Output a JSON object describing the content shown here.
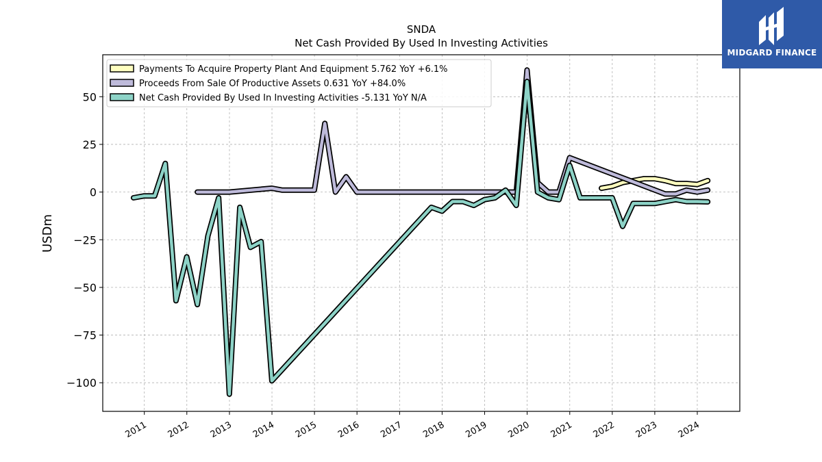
{
  "chart_data": {
    "type": "line",
    "ticker": "SNDA",
    "title": "Net Cash Provided By Used In Investing Activities",
    "ylabel": "USDm",
    "xlabel": "",
    "ylim": [
      -115,
      72
    ],
    "yticks": [
      50,
      25,
      0,
      -25,
      -50,
      -75,
      -100
    ],
    "ytick_labels": [
      "50",
      "25",
      "0",
      "−25",
      "−50",
      "−75",
      "−100"
    ],
    "xlim": [
      "2010-01-09",
      "2024-12-31"
    ],
    "xticks": [
      "2011",
      "2012",
      "2013",
      "2014",
      "2015",
      "2016",
      "2017",
      "2018",
      "2019",
      "2020",
      "2021",
      "2022",
      "2023",
      "2024"
    ],
    "grid": true,
    "legend_position": "top-left",
    "series": [
      {
        "name": "Payments To Acquire Property Plant And Equipment  5.762 YoY +6.1%",
        "color": "#ffffbf",
        "points": [
          [
            "2021-09-30",
            2
          ],
          [
            "2021-12-31",
            3
          ],
          [
            "2022-03-31",
            5
          ],
          [
            "2022-06-30",
            6
          ],
          [
            "2022-09-30",
            7
          ],
          [
            "2022-12-31",
            7
          ],
          [
            "2023-03-31",
            6
          ],
          [
            "2023-06-30",
            4.5
          ],
          [
            "2023-09-30",
            4.5
          ],
          [
            "2023-12-31",
            4
          ],
          [
            "2024-03-31",
            6
          ]
        ]
      },
      {
        "name": "Proceeds From Sale Of Productive Assets  0.631 YoY +84.0%",
        "color": "#bebada",
        "points": [
          [
            "2012-03-31",
            0
          ],
          [
            "2012-12-31",
            0
          ],
          [
            "2013-12-31",
            2
          ],
          [
            "2014-03-31",
            1
          ],
          [
            "2014-09-30",
            1
          ],
          [
            "2014-12-31",
            1
          ],
          [
            "2015-03-31",
            36
          ],
          [
            "2015-06-30",
            0
          ],
          [
            "2015-09-30",
            8
          ],
          [
            "2015-12-31",
            0
          ],
          [
            "2016-12-31",
            0
          ],
          [
            "2017-12-31",
            0
          ],
          [
            "2018-12-31",
            0
          ],
          [
            "2019-06-30",
            0
          ],
          [
            "2019-09-30",
            0
          ],
          [
            "2019-12-31",
            64
          ],
          [
            "2020-03-31",
            5
          ],
          [
            "2020-06-30",
            0
          ],
          [
            "2020-09-30",
            0
          ],
          [
            "2020-12-31",
            18
          ],
          [
            "2023-03-31",
            -1
          ],
          [
            "2023-06-30",
            -1
          ],
          [
            "2023-09-30",
            1
          ],
          [
            "2023-12-31",
            0
          ],
          [
            "2024-03-31",
            1
          ]
        ]
      },
      {
        "name": "Net Cash Provided By Used In Investing Activities  -5.131 YoY N/A",
        "color": "#8dd3c7",
        "points": [
          [
            "2010-09-30",
            -3
          ],
          [
            "2010-12-31",
            -2
          ],
          [
            "2011-03-31",
            -2
          ],
          [
            "2011-06-30",
            15
          ],
          [
            "2011-09-30",
            -57
          ],
          [
            "2011-12-31",
            -34
          ],
          [
            "2012-03-31",
            -59
          ],
          [
            "2012-06-30",
            -23
          ],
          [
            "2012-09-30",
            -3
          ],
          [
            "2012-12-31",
            -106
          ],
          [
            "2013-03-31",
            -8
          ],
          [
            "2013-06-30",
            -29
          ],
          [
            "2013-09-30",
            -26
          ],
          [
            "2013-12-31",
            -99
          ],
          [
            "2017-09-30",
            -8
          ],
          [
            "2017-12-31",
            -10
          ],
          [
            "2018-03-31",
            -5
          ],
          [
            "2018-06-30",
            -5
          ],
          [
            "2018-09-30",
            -7
          ],
          [
            "2018-12-31",
            -4
          ],
          [
            "2019-03-31",
            -3
          ],
          [
            "2019-06-30",
            1
          ],
          [
            "2019-09-30",
            -7
          ],
          [
            "2019-12-31",
            58
          ],
          [
            "2020-03-31",
            0
          ],
          [
            "2020-06-30",
            -3
          ],
          [
            "2020-09-30",
            -4
          ],
          [
            "2020-12-31",
            14
          ],
          [
            "2021-03-31",
            -3
          ],
          [
            "2021-06-30",
            -3
          ],
          [
            "2021-09-30",
            -3
          ],
          [
            "2021-12-31",
            -3
          ],
          [
            "2022-03-31",
            -18
          ],
          [
            "2022-06-30",
            -6
          ],
          [
            "2022-09-30",
            -6
          ],
          [
            "2022-12-31",
            -6
          ],
          [
            "2023-03-31",
            -5
          ],
          [
            "2023-06-30",
            -4
          ],
          [
            "2023-09-30",
            -5
          ],
          [
            "2023-12-31",
            -5
          ],
          [
            "2024-03-31",
            -5.131
          ]
        ]
      }
    ]
  },
  "brand": {
    "name": "MIDGARD FINANCE",
    "logo_icon": "midgard-logo-icon",
    "background": "#2f5aa8"
  }
}
